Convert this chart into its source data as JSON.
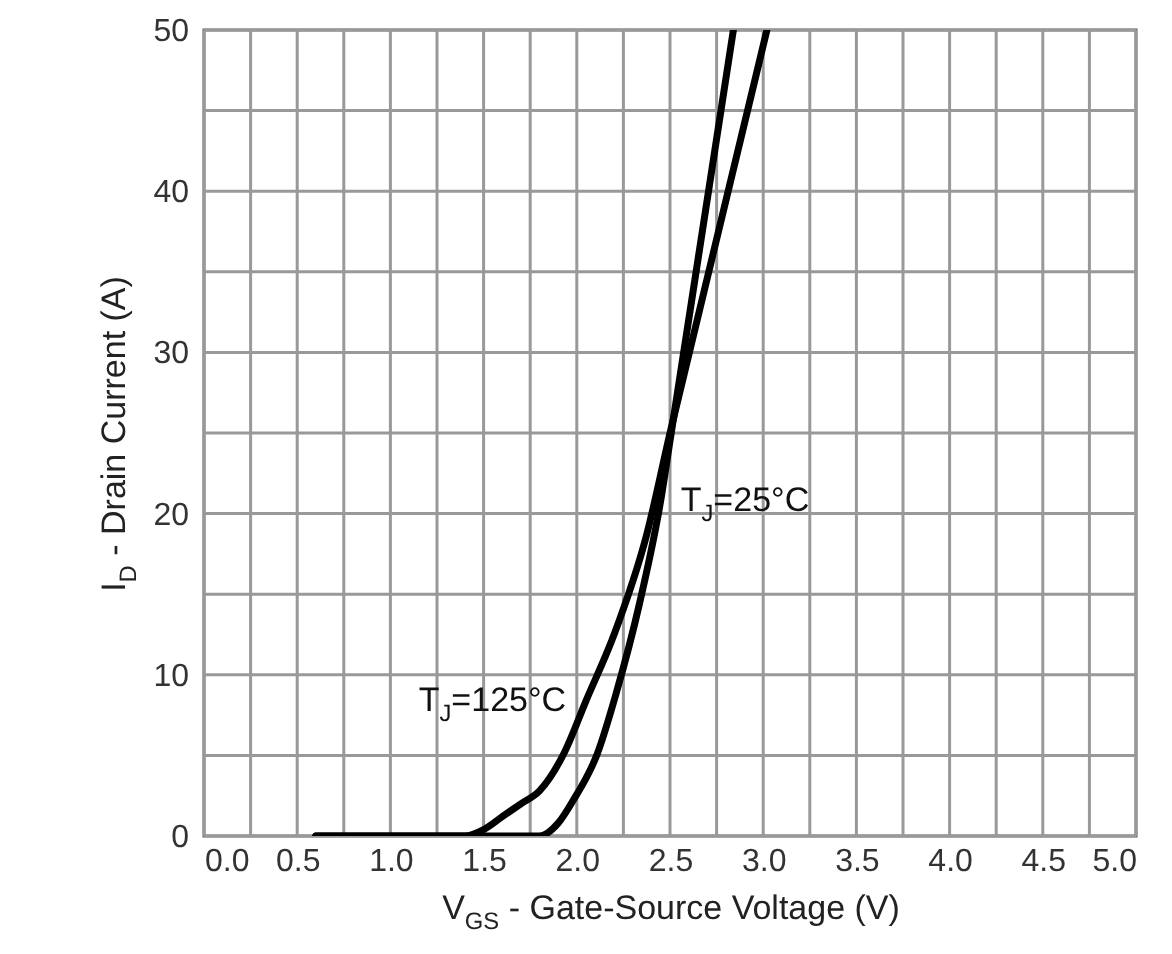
{
  "chart_data": {
    "type": "line",
    "xlabel": "V$_{GS}$ - Gate-Source Voltage (V)",
    "ylabel": "I$_{D}$ - Drain Current (A)",
    "series": [
      {
        "color": "#000000",
        "x": [
          0.6,
          1.4,
          1.5,
          1.6,
          1.7,
          1.8,
          1.93,
          2.05,
          2.2,
          2.375,
          2.5,
          3.02
        ],
        "values": [
          0,
          0,
          0.4,
          1.2,
          2.0,
          2.8,
          5.1,
          8.4,
          12.5,
          18.7,
          25,
          50
        ]
      },
      {
        "color": "#000000",
        "x": [
          0.6,
          1.8,
          1.9,
          1.98,
          2.11,
          2.21,
          2.34,
          2.45,
          2.5,
          2.84
        ],
        "values": [
          0,
          0,
          0.8,
          2.2,
          5.1,
          8.8,
          14.6,
          20.8,
          24.5,
          50
        ]
      }
    ],
    "annotations": [
      {
        "text": "T$_{J}$=125°C",
        "x": 2.05,
        "y": 8.4
      },
      {
        "text": "T$_{J}$=25°C",
        "x": 2.45,
        "y": 20.8
      }
    ],
    "xlim": [
      0,
      5
    ],
    "ylim": [
      0,
      50
    ],
    "xticks": [
      "0.0",
      {
        "value": 0.25,
        "label": null
      },
      {
        "value": 0.5,
        "label": "0.5"
      },
      {
        "value": 0.75,
        "label": null
      },
      {
        "value": 1,
        "label": "1.0"
      },
      {
        "value": 1.25,
        "label": null
      },
      {
        "value": 1.5,
        "label": "1.5"
      },
      {
        "value": 1.75,
        "label": null
      },
      {
        "value": 2,
        "label": "2.0"
      },
      {
        "value": 2.25,
        "label": null
      },
      {
        "value": 2.5,
        "label": "2.5"
      },
      {
        "value": 2.75,
        "label": null
      },
      {
        "value": 3,
        "label": "3.0"
      },
      {
        "value": 3.25,
        "label": null
      },
      {
        "value": 3.5,
        "label": "3.5"
      },
      {
        "value": 3.75,
        "label": null
      },
      {
        "value": 4,
        "label": "4.0"
      },
      {
        "value": 4.25,
        "label": null
      },
      {
        "value": 4.5,
        "label": "4.5"
      },
      {
        "value": 4.75,
        "label": null
      },
      {
        "value": 5,
        "label": "5.0"
      }
    ],
    "yticks": [
      0,
      {
        "value": 5,
        "label": null
      },
      10,
      {
        "value": 15,
        "label": null
      },
      20,
      {
        "value": 25,
        "label": null
      },
      30,
      {
        "value": 35,
        "label": null
      },
      40,
      {
        "value": 45,
        "label": null
      },
      50
    ],
    "grid": true,
    "marker": "none",
    "line_style": "solid"
  }
}
